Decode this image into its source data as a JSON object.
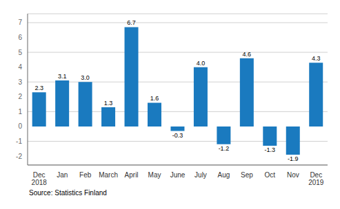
{
  "chart_data": {
    "type": "bar",
    "categories": [
      "Dec\n2018",
      "Jan",
      "Feb",
      "March",
      "April",
      "May",
      "June",
      "July",
      "Aug",
      "Sep",
      "Oct",
      "Nov",
      "Dec\n2019"
    ],
    "values": [
      2.3,
      3.1,
      3.0,
      1.3,
      6.7,
      1.6,
      -0.3,
      4.0,
      -1.2,
      4.6,
      -1.3,
      -1.9,
      4.3
    ],
    "value_labels": [
      "2.3",
      "3.1",
      "3.0",
      "1.3",
      "6.7",
      "1.6",
      "-0.3",
      "4.0",
      "-1.2",
      "4.6",
      "-1.3",
      "-1.9",
      "4.3"
    ],
    "color": "#1a7abf",
    "ylim": [
      -2.6,
      7.6
    ],
    "yticks": [
      -2,
      -1,
      0,
      1,
      2,
      3,
      4,
      5,
      6,
      7
    ],
    "grid": true,
    "data_labels": true,
    "annotations": [
      "Source: Statistics Finland"
    ]
  }
}
